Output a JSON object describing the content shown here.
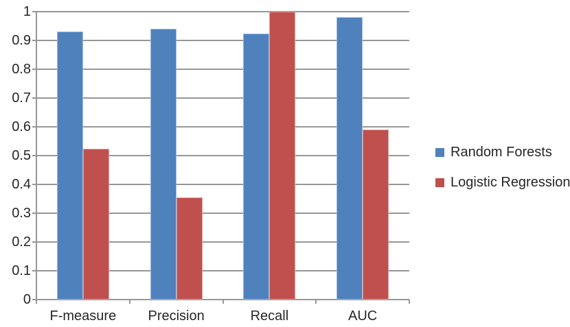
{
  "chart_data": {
    "type": "bar",
    "title": "",
    "categories": [
      "F-measure",
      "Precision",
      "Recall",
      "AUC"
    ],
    "series": [
      {
        "name": "Random Forests",
        "color": "#4F81BD",
        "values": [
          0.93,
          0.94,
          0.925,
          0.98
        ]
      },
      {
        "name": "Logistic Regression",
        "color": "#C0504D",
        "values": [
          0.525,
          0.355,
          1.0,
          0.59
        ]
      }
    ],
    "ylim": [
      0,
      1
    ],
    "ytick_step": 0.1,
    "ytick_labels": [
      "0",
      "0.1",
      "0.2",
      "0.3",
      "0.4",
      "0.5",
      "0.6",
      "0.7",
      "0.8",
      "0.9",
      "1"
    ],
    "grid": "horizontal",
    "legend_position": "right",
    "colors": {
      "gridline": "#969696",
      "axis": "#969696",
      "text": "#262626",
      "background": "#FFFFFF"
    }
  }
}
